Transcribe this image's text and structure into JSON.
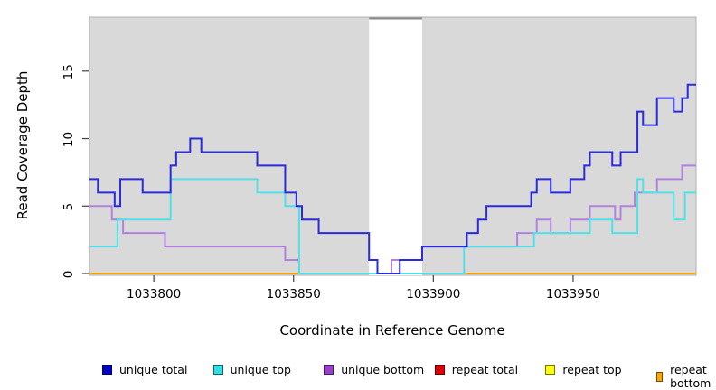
{
  "figure": {
    "x_axis_label": "Coordinate in Reference Genome",
    "y_axis_label": "Read Coverage Depth"
  },
  "legend": {
    "items": [
      {
        "label": "unique total",
        "color": "#0000cc"
      },
      {
        "label": "unique top",
        "color": "#2ee0e6"
      },
      {
        "label": "unique bottom",
        "color": "#9c3fd0"
      },
      {
        "label": "repeat total",
        "color": "#e00000"
      },
      {
        "label": "repeat top",
        "color": "#ffff00"
      },
      {
        "label": "repeat bottom",
        "color": "#ffa500"
      }
    ]
  },
  "chart_data": {
    "type": "line",
    "subtype": "step-coverage",
    "title": "",
    "xlabel": "Coordinate in Reference Genome",
    "ylabel": "Read Coverage Depth",
    "xlim": [
      1033777,
      1033994
    ],
    "ylim": [
      0,
      19
    ],
    "x_ticks": [
      1033800,
      1033850,
      1033900,
      1033950
    ],
    "y_ticks": [
      0,
      5,
      10,
      15
    ],
    "grid": false,
    "legend_position": "bottom",
    "plot_bg": "#d9d9d9",
    "plot_border": "#b0b0b0",
    "gap_region": {
      "x1": 1033877,
      "x2": 1033896,
      "fill": "#ffffff",
      "top_border": "#8a8a8a"
    },
    "baseline_segments": [
      {
        "x1": 1033777,
        "x2": 1033852,
        "color": "#ffa500"
      },
      {
        "x1": 1033852,
        "x2": 1033880,
        "color": "#e0607a"
      },
      {
        "x1": 1033880,
        "x2": 1033910,
        "color": "#8bd49c"
      },
      {
        "x1": 1033910,
        "x2": 1033994,
        "color": "#ffa500"
      }
    ],
    "series": [
      {
        "name": "unique total",
        "color": "#2b2bdb",
        "steps": [
          [
            1033777,
            7
          ],
          [
            1033780,
            6
          ],
          [
            1033786,
            5
          ],
          [
            1033788,
            7
          ],
          [
            1033796,
            6
          ],
          [
            1033806,
            8
          ],
          [
            1033808,
            9
          ],
          [
            1033813,
            10
          ],
          [
            1033817,
            9
          ],
          [
            1033837,
            8
          ],
          [
            1033847,
            6
          ],
          [
            1033851,
            5
          ],
          [
            1033853,
            4
          ],
          [
            1033859,
            3
          ],
          [
            1033877,
            1
          ],
          [
            1033880,
            0
          ],
          [
            1033888,
            1
          ],
          [
            1033896,
            2
          ],
          [
            1033912,
            3
          ],
          [
            1033916,
            4
          ],
          [
            1033919,
            5
          ],
          [
            1033935,
            6
          ],
          [
            1033937,
            7
          ],
          [
            1033942,
            6
          ],
          [
            1033949,
            7
          ],
          [
            1033954,
            8
          ],
          [
            1033956,
            9
          ],
          [
            1033964,
            8
          ],
          [
            1033967,
            9
          ],
          [
            1033973,
            12
          ],
          [
            1033975,
            11
          ],
          [
            1033980,
            13
          ],
          [
            1033986,
            12
          ],
          [
            1033989,
            13
          ],
          [
            1033991,
            14
          ]
        ]
      },
      {
        "name": "unique top",
        "color": "#4fe1e8",
        "steps": [
          [
            1033777,
            2
          ],
          [
            1033787,
            4
          ],
          [
            1033806,
            7
          ],
          [
            1033837,
            6
          ],
          [
            1033847,
            5
          ],
          [
            1033852,
            0
          ],
          [
            1033911,
            2
          ],
          [
            1033936,
            3
          ],
          [
            1033956,
            4
          ],
          [
            1033964,
            3
          ],
          [
            1033973,
            7
          ],
          [
            1033975,
            6
          ],
          [
            1033986,
            4
          ],
          [
            1033990,
            6
          ]
        ]
      },
      {
        "name": "unique bottom",
        "color": "#b181de",
        "steps": [
          [
            1033777,
            5
          ],
          [
            1033785,
            4
          ],
          [
            1033789,
            3
          ],
          [
            1033804,
            2
          ],
          [
            1033847,
            1
          ],
          [
            1033852,
            0
          ],
          [
            1033885,
            1
          ],
          [
            1033896,
            2
          ],
          [
            1033930,
            3
          ],
          [
            1033937,
            4
          ],
          [
            1033942,
            3
          ],
          [
            1033949,
            4
          ],
          [
            1033956,
            5
          ],
          [
            1033965,
            4
          ],
          [
            1033967,
            5
          ],
          [
            1033972,
            6
          ],
          [
            1033980,
            7
          ],
          [
            1033989,
            8
          ]
        ]
      },
      {
        "name": "repeat total",
        "color": "#e00000",
        "steps": [
          [
            1033777,
            0
          ]
        ]
      },
      {
        "name": "repeat top",
        "color": "#ffff00",
        "steps": [
          [
            1033777,
            0
          ]
        ]
      },
      {
        "name": "repeat bottom",
        "color": "#ffa500",
        "steps": [
          [
            1033777,
            0
          ]
        ]
      }
    ]
  }
}
